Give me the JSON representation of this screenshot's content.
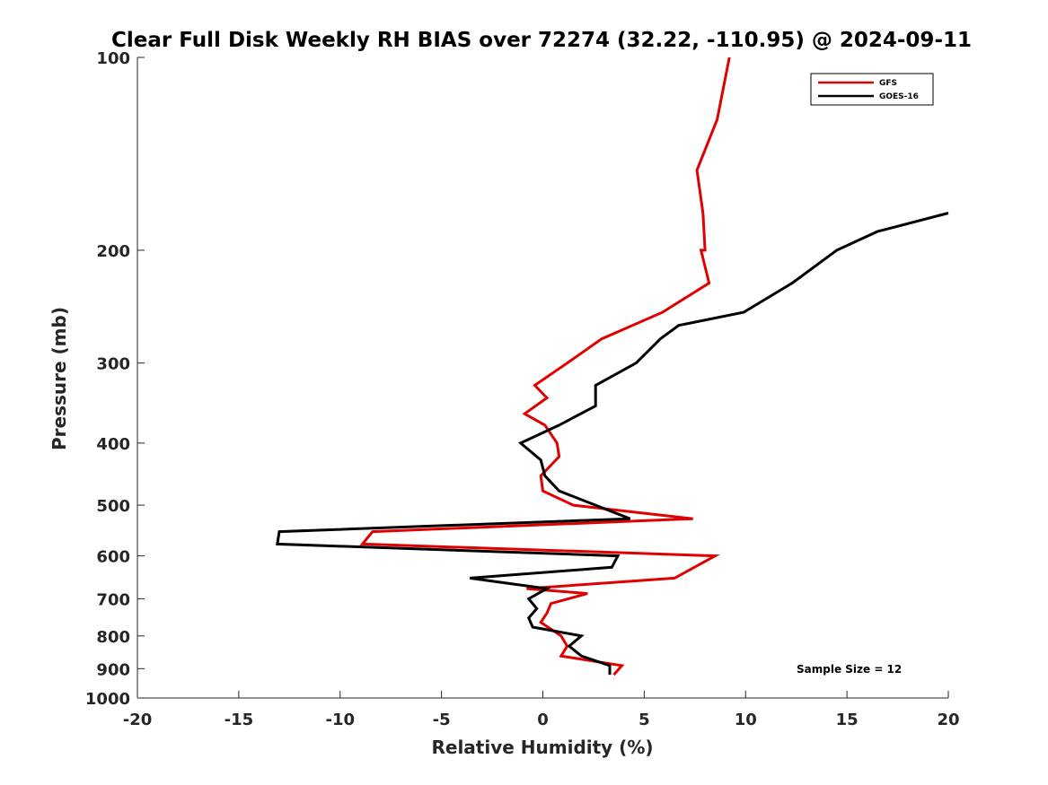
{
  "chart_data": {
    "type": "line",
    "title": "Clear Full Disk Weekly RH BIAS over 72274 (32.22, -110.95) @ 2024-09-11",
    "xlabel": "Relative Humidity (%)",
    "ylabel": "Pressure (mb)",
    "xlim": [
      -20,
      20
    ],
    "ylim": [
      100,
      1000
    ],
    "y_scale": "log",
    "y_reversed": true,
    "x_ticks": [
      "-20",
      "-15",
      "-10",
      "-5",
      "0",
      "5",
      "10",
      "15",
      "20"
    ],
    "y_ticks": [
      "100",
      "200",
      "300",
      "400",
      "500",
      "600",
      "700",
      "800",
      "900",
      "1000"
    ],
    "grid": false,
    "legend_position": "top-right",
    "annotation": "Sample Size = 12",
    "series": [
      {
        "name": "GFS",
        "color": "#e00000",
        "points": [
          [
            9.2,
            100
          ],
          [
            8.6,
            125
          ],
          [
            7.6,
            150
          ],
          [
            7.9,
            175
          ],
          [
            8.0,
            200
          ],
          [
            7.8,
            200
          ],
          [
            8.2,
            225
          ],
          [
            5.9,
            250
          ],
          [
            2.9,
            275
          ],
          [
            2.2,
            285
          ],
          [
            1.2,
            300
          ],
          [
            -0.4,
            325
          ],
          [
            0.2,
            340
          ],
          [
            -0.9,
            360
          ],
          [
            0.1,
            375
          ],
          [
            0.7,
            400
          ],
          [
            0.8,
            420
          ],
          [
            -0.1,
            450
          ],
          [
            0.0,
            475
          ],
          [
            1.5,
            500
          ],
          [
            7.4,
            525
          ],
          [
            -8.4,
            550
          ],
          [
            -8.9,
            575
          ],
          [
            8.5,
            600
          ],
          [
            6.5,
            650
          ],
          [
            -0.8,
            675
          ],
          [
            2.2,
            687
          ],
          [
            0.4,
            712
          ],
          [
            0.2,
            737
          ],
          [
            -0.1,
            762
          ],
          [
            0.9,
            800
          ],
          [
            1.2,
            830
          ],
          [
            0.9,
            860
          ],
          [
            3.9,
            890
          ],
          [
            3.5,
            920
          ]
        ]
      },
      {
        "name": "GOES-16",
        "color": "#000000",
        "points": [
          [
            20.0,
            175
          ],
          [
            16.5,
            187
          ],
          [
            14.5,
            200
          ],
          [
            12.3,
            225
          ],
          [
            9.9,
            250
          ],
          [
            6.7,
            262
          ],
          [
            5.8,
            275
          ],
          [
            4.6,
            300
          ],
          [
            2.6,
            325
          ],
          [
            2.6,
            350
          ],
          [
            0.8,
            375
          ],
          [
            -1.1,
            400
          ],
          [
            -0.1,
            425
          ],
          [
            0.1,
            450
          ],
          [
            0.8,
            475
          ],
          [
            4.3,
            525
          ],
          [
            -13.0,
            550
          ],
          [
            -13.1,
            575
          ],
          [
            3.7,
            600
          ],
          [
            3.4,
            625
          ],
          [
            -3.6,
            650
          ],
          [
            0.2,
            675
          ],
          [
            -0.7,
            700
          ],
          [
            -0.3,
            725
          ],
          [
            -0.7,
            750
          ],
          [
            -0.5,
            775
          ],
          [
            1.9,
            800
          ],
          [
            1.3,
            830
          ],
          [
            1.9,
            860
          ],
          [
            3.3,
            890
          ],
          [
            3.3,
            920
          ]
        ]
      }
    ]
  }
}
